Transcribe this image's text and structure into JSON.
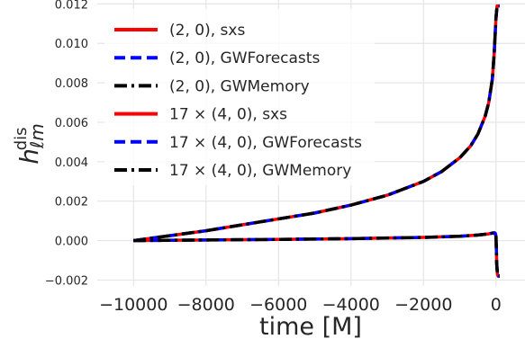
{
  "chart_data": {
    "type": "line",
    "xlabel": "time [M]",
    "ylabel_main": "h",
    "ylabel_sub": "ℓm",
    "ylabel_sup": "dis",
    "xlim": [
      -11000,
      800
    ],
    "ylim": [
      -0.0023,
      0.0122
    ],
    "grid": true,
    "legend_position": "top-left",
    "x_ticks": [
      {
        "value": -10000,
        "label": "−10000"
      },
      {
        "value": -8000,
        "label": "−8000"
      },
      {
        "value": -6000,
        "label": "−6000"
      },
      {
        "value": -4000,
        "label": "−4000"
      },
      {
        "value": -2000,
        "label": "−2000"
      },
      {
        "value": 0,
        "label": "0"
      }
    ],
    "y_ticks": [
      {
        "value": -0.002,
        "label": "−0.002"
      },
      {
        "value": 0.0,
        "label": "0.000"
      },
      {
        "value": 0.002,
        "label": "0.002"
      },
      {
        "value": 0.004,
        "label": "0.004"
      },
      {
        "value": 0.006,
        "label": "0.006"
      },
      {
        "value": 0.008,
        "label": "0.008"
      },
      {
        "value": 0.01,
        "label": "0.010"
      },
      {
        "value": 0.012,
        "label": "0.012"
      }
    ],
    "series": [
      {
        "label_math": "(2, 0)",
        "label_text": ", sxs",
        "color": "#ff0000",
        "style": "solid",
        "mode": "l20"
      },
      {
        "label_math": "(2, 0)",
        "label_text": ", GWForecasts",
        "color": "#0000ff",
        "style": "dashed",
        "mode": "l20"
      },
      {
        "label_math": "(2, 0)",
        "label_text": ", GWMemory",
        "color": "#000000",
        "style": "dashdot",
        "mode": "l20"
      },
      {
        "label_math": "17 × (4, 0)",
        "label_text": ", sxs",
        "color": "#ff0000",
        "style": "solid",
        "mode": "l40"
      },
      {
        "label_math": "17 × (4, 0)",
        "label_text": ", GWForecasts",
        "color": "#0000ff",
        "style": "dashed",
        "mode": "l40"
      },
      {
        "label_math": "17 × (4, 0)",
        "label_text": ", GWMemory",
        "color": "#000000",
        "style": "dashdot",
        "mode": "l40"
      }
    ],
    "curves": {
      "l20": {
        "x": [
          -10000,
          -9000,
          -8000,
          -7000,
          -6000,
          -5000,
          -4000,
          -3000,
          -2000,
          -1500,
          -1000,
          -700,
          -500,
          -300,
          -200,
          -100,
          -50,
          0,
          30,
          60,
          100
        ],
        "y": [
          0.0,
          0.00025,
          0.0005,
          0.0008,
          0.0011,
          0.0014,
          0.0018,
          0.0023,
          0.003,
          0.0035,
          0.0042,
          0.0048,
          0.0054,
          0.0063,
          0.007,
          0.0082,
          0.0095,
          0.0113,
          0.0119,
          0.0119,
          0.0119
        ]
      },
      "l40": {
        "x": [
          -10000,
          -8000,
          -6000,
          -4000,
          -2000,
          -1000,
          -500,
          -200,
          -100,
          -50,
          -20,
          0,
          10,
          20,
          40,
          60,
          100
        ],
        "y": [
          0.0,
          3e-05,
          6e-05,
          0.0001,
          0.00016,
          0.00022,
          0.00028,
          0.00034,
          0.00038,
          0.0004,
          0.00037,
          0.0002,
          -0.0004,
          -0.0012,
          -0.0017,
          -0.0018,
          -0.0018
        ]
      }
    }
  }
}
